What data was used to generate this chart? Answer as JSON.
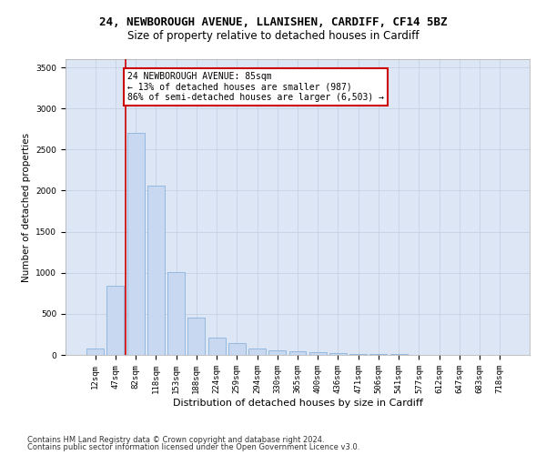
{
  "title": "24, NEWBOROUGH AVENUE, LLANISHEN, CARDIFF, CF14 5BZ",
  "subtitle": "Size of property relative to detached houses in Cardiff",
  "xlabel": "Distribution of detached houses by size in Cardiff",
  "ylabel": "Number of detached properties",
  "categories": [
    "12sqm",
    "47sqm",
    "82sqm",
    "118sqm",
    "153sqm",
    "188sqm",
    "224sqm",
    "259sqm",
    "294sqm",
    "330sqm",
    "365sqm",
    "400sqm",
    "436sqm",
    "471sqm",
    "506sqm",
    "541sqm",
    "577sqm",
    "612sqm",
    "647sqm",
    "683sqm",
    "718sqm"
  ],
  "values": [
    75,
    840,
    2700,
    2060,
    1010,
    450,
    215,
    140,
    75,
    55,
    40,
    28,
    18,
    14,
    10,
    7,
    5,
    4,
    3,
    2,
    2
  ],
  "bar_color": "#c8d8f0",
  "bar_edge_color": "#7baad8",
  "vline_position": 1.5,
  "vline_color": "#cc0000",
  "annotation_text": "24 NEWBOROUGH AVENUE: 85sqm\n← 13% of detached houses are smaller (987)\n86% of semi-detached houses are larger (6,503) →",
  "annotation_box_facecolor": "#ffffff",
  "annotation_box_edgecolor": "#cc0000",
  "ylim_max": 3600,
  "yticks": [
    0,
    500,
    1000,
    1500,
    2000,
    2500,
    3000,
    3500
  ],
  "ax_facecolor": "#dde6f5",
  "fig_facecolor": "#ffffff",
  "grid_color": "#c0cee0",
  "footer_line1": "Contains HM Land Registry data © Crown copyright and database right 2024.",
  "footer_line2": "Contains public sector information licensed under the Open Government Licence v3.0.",
  "title_fontsize": 9,
  "subtitle_fontsize": 8.5,
  "xlabel_fontsize": 8,
  "ylabel_fontsize": 7.5,
  "tick_fontsize": 6.5,
  "annotation_fontsize": 7,
  "footer_fontsize": 6
}
